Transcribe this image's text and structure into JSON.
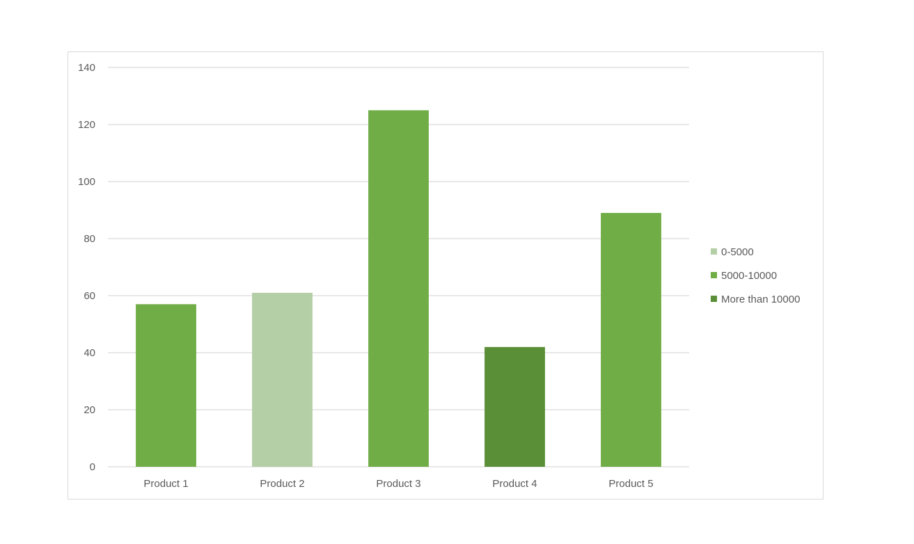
{
  "chart_data": {
    "type": "bar",
    "categories": [
      "Product 1",
      "Product 2",
      "Product 3",
      "Product 4",
      "Product 5"
    ],
    "values": [
      57,
      61,
      125,
      42,
      89
    ],
    "value_groups": [
      "5000-10000",
      "0-5000",
      "5000-10000",
      "More than 10000",
      "5000-10000"
    ],
    "ylim": [
      0,
      140
    ],
    "yticks": [
      0,
      20,
      40,
      60,
      80,
      100,
      120,
      140
    ],
    "grid": true,
    "legend_position": "right",
    "legend": [
      {
        "label": "0-5000",
        "color": "#b4cfa6"
      },
      {
        "label": "5000-10000",
        "color": "#70ad47"
      },
      {
        "label": "More than 10000",
        "color": "#5a8f37"
      }
    ],
    "colors": {
      "0-5000": "#b4cfa6",
      "5000-10000": "#70ad47",
      "More than 10000": "#5a8f37",
      "gridline": "#d9d9d9",
      "text": "#595959"
    }
  }
}
